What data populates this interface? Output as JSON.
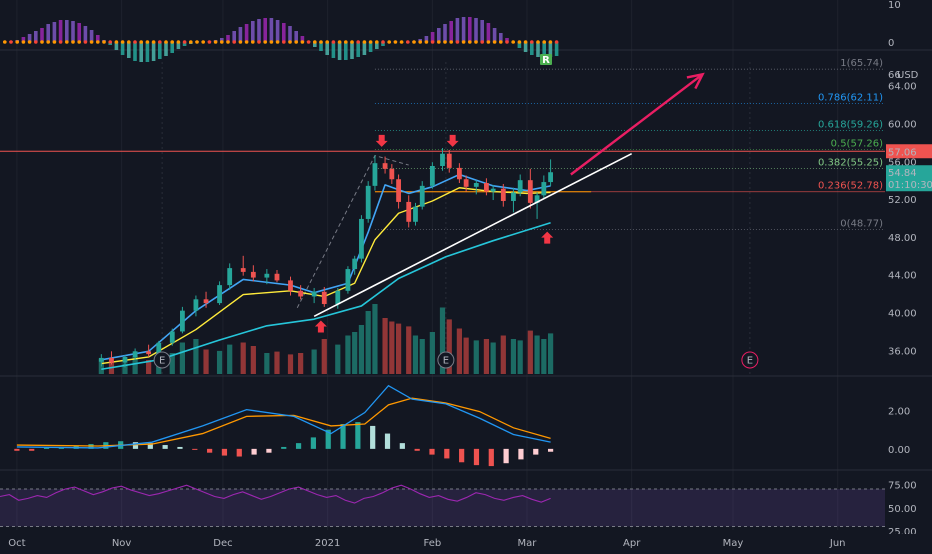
{
  "chart_data": {
    "type": "candlestick",
    "theme": {
      "background": "#131722",
      "grid": "#2a2e39",
      "text": "#b2b5be",
      "up": "#26a69a",
      "down": "#ef5350",
      "arrow": "#e91e63"
    },
    "x_axis": {
      "labels": [
        "Oct",
        "Nov",
        "Dec",
        "2021",
        "Feb",
        "Mar",
        "Apr",
        "May",
        "Jun"
      ],
      "dates": [
        "2020-10-01",
        "2020-11-01",
        "2020-12-01",
        "2021-01-01",
        "2021-02-01",
        "2021-03-01",
        "2021-04-01",
        "2021-05-01",
        "2021-06-01"
      ],
      "range": [
        "2020-09-26",
        "2021-06-15"
      ]
    },
    "price_pane": {
      "currency": "USD",
      "ylim": [
        33.5,
        66.5
      ],
      "ticks": [
        "64.00",
        "60.00",
        "56.00",
        "52.00",
        "48.00",
        "44.00",
        "40.00",
        "36.00"
      ],
      "top_tick": "66",
      "scale_labels": [
        {
          "text": "57.06",
          "value": 57.06,
          "color": "#ef5350"
        },
        {
          "text": "54.84",
          "value": 54.84,
          "color": "#26a69a"
        },
        {
          "text": "01:10:30",
          "value": 53.9,
          "color": "#26a69a"
        }
      ],
      "horizontal_line": {
        "value": 57.06,
        "color": "#ef5350"
      },
      "fibonacci": [
        {
          "label": "1(65.74)",
          "value": 65.74,
          "color": "#787b86"
        },
        {
          "label": "0.786(62.11)",
          "value": 62.11,
          "color": "#2196f3"
        },
        {
          "label": "0.618(59.26)",
          "value": 59.26,
          "color": "#26a69a"
        },
        {
          "label": "0.5(57.26)",
          "value": 57.26,
          "color": "#4caf50"
        },
        {
          "label": "0.382(55.25)",
          "value": 55.25,
          "color": "#81c784"
        },
        {
          "label": "0.236(52.78)",
          "value": 52.78,
          "color": "#ef5350"
        },
        {
          "label": "0(48.77)",
          "value": 48.77,
          "color": "#787b86"
        }
      ],
      "earnings_marker": "E",
      "earnings_dates": [
        "2020-11-13",
        "2021-02-05",
        "2021-05-06"
      ],
      "trendline": {
        "from": [
          "2020-12-28",
          39.6
        ],
        "to": [
          "2021-04-01",
          56.8
        ],
        "color": "#ffffff"
      },
      "projection_arrow": {
        "from": [
          "2021-03-14",
          54.6
        ],
        "to": [
          "2021-04-22",
          65.2
        ],
        "color": "#e91e63"
      },
      "down_arrows": [
        [
          "2021-01-17",
          57.0
        ],
        [
          "2021-02-07",
          57.0
        ]
      ],
      "up_arrows": [
        [
          "2020-12-30",
          39.9
        ],
        [
          "2021-03-07",
          49.3
        ]
      ],
      "candles": [
        [
          "2020-10-26",
          34.8,
          35.6,
          34.3,
          35.2
        ],
        [
          "2020-10-29",
          35.2,
          35.9,
          34.5,
          34.7
        ],
        [
          "2020-11-02",
          34.7,
          35.5,
          34.2,
          35.3
        ],
        [
          "2020-11-05",
          35.3,
          36.2,
          35.0,
          35.9
        ],
        [
          "2020-11-09",
          35.9,
          36.6,
          35.3,
          35.6
        ],
        [
          "2020-11-12",
          35.6,
          37.0,
          35.4,
          36.8
        ],
        [
          "2020-11-16",
          36.8,
          38.3,
          36.5,
          38.0
        ],
        [
          "2020-11-19",
          38.0,
          40.6,
          37.8,
          40.2
        ],
        [
          "2020-11-23",
          40.2,
          41.8,
          39.6,
          41.4
        ],
        [
          "2020-11-26",
          41.4,
          42.2,
          40.5,
          41.0
        ],
        [
          "2020-11-30",
          41.0,
          43.3,
          40.8,
          42.9
        ],
        [
          "2020-12-03",
          42.9,
          45.2,
          42.4,
          44.7
        ],
        [
          "2020-12-07",
          44.7,
          46.0,
          43.9,
          44.3
        ],
        [
          "2020-12-10",
          44.3,
          45.0,
          43.3,
          43.7
        ],
        [
          "2020-12-14",
          43.7,
          44.6,
          43.0,
          44.1
        ],
        [
          "2020-12-17",
          44.1,
          44.5,
          43.2,
          43.4
        ],
        [
          "2020-12-21",
          43.4,
          43.8,
          41.8,
          42.3
        ],
        [
          "2020-12-24",
          42.3,
          42.9,
          41.4,
          41.7
        ],
        [
          "2020-12-28",
          41.7,
          42.6,
          41.0,
          42.2
        ],
        [
          "2020-12-31",
          42.2,
          42.7,
          40.6,
          40.9
        ],
        [
          "2021-01-04",
          40.9,
          42.6,
          40.4,
          42.3
        ],
        [
          "2021-01-07",
          42.3,
          44.9,
          42.0,
          44.6
        ],
        [
          "2021-01-09",
          44.6,
          46.0,
          44.0,
          45.7
        ],
        [
          "2021-01-11",
          45.7,
          50.3,
          45.3,
          49.9
        ],
        [
          "2021-01-13",
          49.9,
          53.9,
          49.5,
          53.4
        ],
        [
          "2021-01-15",
          53.4,
          56.6,
          52.9,
          55.8
        ],
        [
          "2021-01-18",
          55.8,
          56.5,
          54.7,
          55.2
        ],
        [
          "2021-01-20",
          55.2,
          55.7,
          53.6,
          54.1
        ],
        [
          "2021-01-22",
          54.1,
          54.6,
          51.0,
          51.7
        ],
        [
          "2021-01-25",
          51.7,
          52.4,
          49.0,
          49.6
        ],
        [
          "2021-01-27",
          49.6,
          51.6,
          49.2,
          51.2
        ],
        [
          "2021-01-29",
          51.2,
          53.9,
          50.9,
          53.4
        ],
        [
          "2021-02-01",
          53.4,
          55.9,
          53.1,
          55.5
        ],
        [
          "2021-02-04",
          55.5,
          57.4,
          55.0,
          56.8
        ],
        [
          "2021-02-06",
          56.8,
          57.2,
          54.8,
          55.3
        ],
        [
          "2021-02-09",
          55.3,
          55.8,
          53.7,
          54.1
        ],
        [
          "2021-02-11",
          54.1,
          54.5,
          52.8,
          53.3
        ],
        [
          "2021-02-14",
          53.3,
          54.0,
          52.5,
          53.7
        ],
        [
          "2021-02-17",
          53.7,
          54.2,
          52.4,
          52.8
        ],
        [
          "2021-02-19",
          52.8,
          53.5,
          51.9,
          53.1
        ],
        [
          "2021-02-22",
          53.1,
          53.6,
          51.2,
          51.8
        ],
        [
          "2021-02-25",
          51.8,
          53.2,
          50.6,
          52.7
        ],
        [
          "2021-02-27",
          52.7,
          54.6,
          52.3,
          54.0
        ],
        [
          "2021-03-02",
          54.0,
          55.2,
          51.0,
          51.6
        ],
        [
          "2021-03-04",
          51.6,
          52.7,
          49.9,
          52.4
        ],
        [
          "2021-03-06",
          52.4,
          54.5,
          52.0,
          53.8
        ],
        [
          "2021-03-08",
          53.8,
          56.2,
          53.4,
          54.84
        ]
      ],
      "ema_short": [
        [
          "2020-10-26",
          35.0
        ],
        [
          "2020-11-09",
          35.9
        ],
        [
          "2020-11-23",
          40.2
        ],
        [
          "2020-12-07",
          43.5
        ],
        [
          "2020-12-21",
          42.9
        ],
        [
          "2020-12-28",
          42.1
        ],
        [
          "2021-01-07",
          43.1
        ],
        [
          "2021-01-13",
          48.5
        ],
        [
          "2021-01-18",
          53.5
        ],
        [
          "2021-01-25",
          52.6
        ],
        [
          "2021-02-01",
          53.3
        ],
        [
          "2021-02-09",
          54.6
        ],
        [
          "2021-02-19",
          53.4
        ],
        [
          "2021-03-01",
          52.9
        ],
        [
          "2021-03-08",
          53.4
        ]
      ],
      "ema_mid": [
        [
          "2020-10-26",
          34.6
        ],
        [
          "2020-11-09",
          35.3
        ],
        [
          "2020-11-23",
          38.2
        ],
        [
          "2020-12-07",
          41.9
        ],
        [
          "2020-12-21",
          42.3
        ],
        [
          "2020-12-31",
          41.7
        ],
        [
          "2021-01-09",
          43.1
        ],
        [
          "2021-01-15",
          47.7
        ],
        [
          "2021-01-22",
          50.5
        ],
        [
          "2021-02-01",
          51.8
        ],
        [
          "2021-02-09",
          53.2
        ],
        [
          "2021-02-19",
          52.8
        ],
        [
          "2021-03-01",
          52.6
        ],
        [
          "2021-03-08",
          52.7
        ]
      ],
      "ema_long": [
        [
          "2020-10-26",
          34.0
        ],
        [
          "2020-11-12",
          35.0
        ],
        [
          "2020-11-30",
          37.1
        ],
        [
          "2020-12-14",
          38.6
        ],
        [
          "2020-12-28",
          39.3
        ],
        [
          "2021-01-11",
          40.7
        ],
        [
          "2021-01-22",
          43.6
        ],
        [
          "2021-02-05",
          45.9
        ],
        [
          "2021-02-19",
          47.6
        ],
        [
          "2021-03-08",
          49.5
        ]
      ],
      "volume": [
        0.22,
        0.18,
        0.15,
        0.25,
        0.2,
        0.28,
        0.3,
        0.45,
        0.5,
        0.35,
        0.33,
        0.42,
        0.45,
        0.4,
        0.3,
        0.32,
        0.28,
        0.3,
        0.35,
        0.5,
        0.42,
        0.55,
        0.6,
        0.7,
        0.9,
        1.0,
        0.8,
        0.75,
        0.72,
        0.68,
        0.55,
        0.5,
        0.6,
        0.95,
        0.78,
        0.65,
        0.52,
        0.48,
        0.5,
        0.45,
        0.55,
        0.5,
        0.48,
        0.62,
        0.55,
        0.5,
        0.58
      ]
    },
    "top_histogram": {
      "ticks": [
        "10",
        "0"
      ],
      "badge": "R",
      "badge_color": "#4caf50"
    },
    "macd_pane": {
      "ticks": [
        "2.00",
        "0.00"
      ],
      "ylim": [
        -1.0,
        3.6
      ],
      "macd": [
        [
          "2020-10-01",
          0.1
        ],
        [
          "2020-10-25",
          0.05
        ],
        [
          "2020-11-10",
          0.35
        ],
        [
          "2020-11-25",
          1.2
        ],
        [
          "2020-12-08",
          2.05
        ],
        [
          "2020-12-22",
          1.7
        ],
        [
          "2021-01-02",
          0.8
        ],
        [
          "2021-01-12",
          1.9
        ],
        [
          "2021-01-19",
          3.3
        ],
        [
          "2021-01-26",
          2.6
        ],
        [
          "2021-02-05",
          2.35
        ],
        [
          "2021-02-15",
          1.6
        ],
        [
          "2021-02-25",
          0.75
        ],
        [
          "2021-03-08",
          0.35
        ]
      ],
      "signal": [
        [
          "2020-10-01",
          0.2
        ],
        [
          "2020-10-25",
          0.15
        ],
        [
          "2020-11-10",
          0.25
        ],
        [
          "2020-11-25",
          0.8
        ],
        [
          "2020-12-08",
          1.7
        ],
        [
          "2020-12-22",
          1.75
        ],
        [
          "2021-01-02",
          1.2
        ],
        [
          "2021-01-12",
          1.3
        ],
        [
          "2021-01-19",
          2.3
        ],
        [
          "2021-01-26",
          2.65
        ],
        [
          "2021-02-05",
          2.4
        ],
        [
          "2021-02-15",
          1.95
        ],
        [
          "2021-02-25",
          1.1
        ],
        [
          "2021-03-08",
          0.55
        ]
      ],
      "histogram": [
        -0.1,
        -0.1,
        0.05,
        0.1,
        0.15,
        0.25,
        0.35,
        0.4,
        0.35,
        0.3,
        0.2,
        0.1,
        -0.05,
        -0.2,
        -0.35,
        -0.4,
        -0.3,
        -0.2,
        0.1,
        0.3,
        0.6,
        1.0,
        1.3,
        1.4,
        1.2,
        0.8,
        0.3,
        -0.1,
        -0.3,
        -0.5,
        -0.7,
        -0.85,
        -0.9,
        -0.75,
        -0.55,
        -0.3,
        -0.15
      ]
    },
    "rsi_pane": {
      "ticks": [
        "75.00",
        "50.00",
        "25.00"
      ],
      "ylim": [
        22,
        86
      ],
      "band": [
        30,
        70
      ],
      "rsi": [
        62,
        64,
        58,
        60,
        63,
        61,
        66,
        70,
        72,
        68,
        64,
        67,
        71,
        73,
        69,
        66,
        63,
        65,
        68,
        71,
        74,
        70,
        66,
        62,
        60,
        64,
        67,
        63,
        59,
        62,
        66,
        70,
        72,
        68,
        64,
        61,
        63,
        58,
        55,
        60,
        62,
        66,
        71,
        74,
        70,
        65,
        61,
        63,
        59,
        57,
        61,
        66,
        64,
        60,
        58,
        61,
        63,
        59,
        56,
        60
      ]
    }
  }
}
